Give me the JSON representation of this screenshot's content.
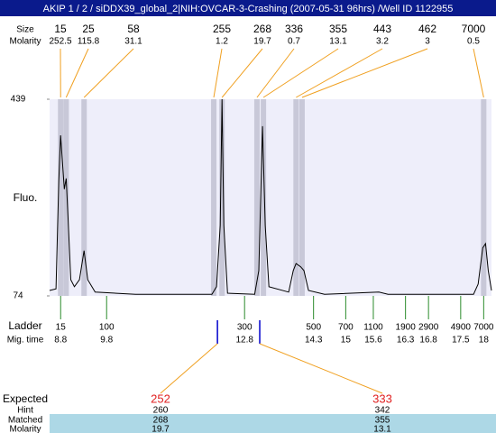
{
  "chart_data": {
    "type": "line",
    "title": "AKIP 1 / 2 / siDDX39_global_2|NIH:OVCAR-3-Crashing (2007-05-31 96hrs) /Well ID 1122955",
    "y_label": "Fluo.",
    "size_label": "Size",
    "molarity_label": "Molarity",
    "ladder_label": "Ladder",
    "mig_time_label": "Mig. time",
    "color": "#000000",
    "xlim": [
      8.56,
      18.17
    ],
    "ylim": [
      74,
      439
    ],
    "yticks": [
      74,
      439
    ],
    "x": [
      8.56,
      8.7,
      8.76,
      8.8,
      8.84,
      8.88,
      8.92,
      8.96,
      9.02,
      9.1,
      9.21,
      9.31,
      9.39,
      9.55,
      10.43,
      12.09,
      12.19,
      12.27,
      12.31,
      12.35,
      12.43,
      13.02,
      13.11,
      13.19,
      13.25,
      13.33,
      13.76,
      13.86,
      13.92,
      14.02,
      14.09,
      14.19,
      14.54,
      15.72,
      15.92,
      17.78,
      17.88,
      17.98,
      18.04,
      18.1,
      18.17
    ],
    "values": [
      84,
      87,
      288,
      372,
      321,
      272,
      292,
      221,
      104,
      91,
      104,
      158,
      104,
      81,
      77,
      77,
      91,
      205,
      439,
      205,
      79,
      77,
      121,
      389,
      205,
      91,
      81,
      121,
      134,
      128,
      121,
      84,
      77,
      81,
      77,
      77,
      96,
      163,
      171,
      121,
      84
    ],
    "peaks": [
      {
        "size": 15,
        "molarity": 252.5,
        "time": 8.8
      },
      {
        "size": 25,
        "molarity": 115.8,
        "time": 8.92
      },
      {
        "size": 58,
        "molarity": 31.1,
        "time": 9.31
      },
      {
        "size": 255,
        "molarity": 1.2,
        "time": 12.13
      },
      {
        "size": 268,
        "molarity": 19.7,
        "time": 12.31
      },
      {
        "size": 336,
        "molarity": 0.7,
        "time": 13.07
      },
      {
        "size": 355,
        "molarity": 13.1,
        "time": 13.21
      },
      {
        "size": 443,
        "molarity": 3.2,
        "time": 13.92
      },
      {
        "size": 462,
        "molarity": 3,
        "time": 14.05
      },
      {
        "size": 7000,
        "molarity": 0.5,
        "time": 18.0
      }
    ],
    "ladder": [
      {
        "size": 15,
        "time": 8.8
      },
      {
        "size": 100,
        "time": 9.8
      },
      {
        "size": 300,
        "time": 12.8
      },
      {
        "size": 500,
        "time": 14.3
      },
      {
        "size": 700,
        "time": 15
      },
      {
        "size": 1100,
        "time": 15.6
      },
      {
        "size": 1900,
        "time": 16.3
      },
      {
        "size": 2900,
        "time": 16.8
      },
      {
        "size": 4900,
        "time": 17.5
      },
      {
        "size": 7000,
        "time": 18
      }
    ],
    "expected_label": "Expected",
    "hint_label": "Hint",
    "matched_label": "Matched",
    "expected_molarity_label": "Molarity",
    "expected": [
      {
        "expected": 252,
        "hint": 260,
        "matched": 268,
        "molarity": 19.7,
        "time": 12.21
      },
      {
        "expected": 333,
        "hint": 342,
        "matched": 355,
        "molarity": 13.1,
        "time": 13.13
      }
    ]
  }
}
